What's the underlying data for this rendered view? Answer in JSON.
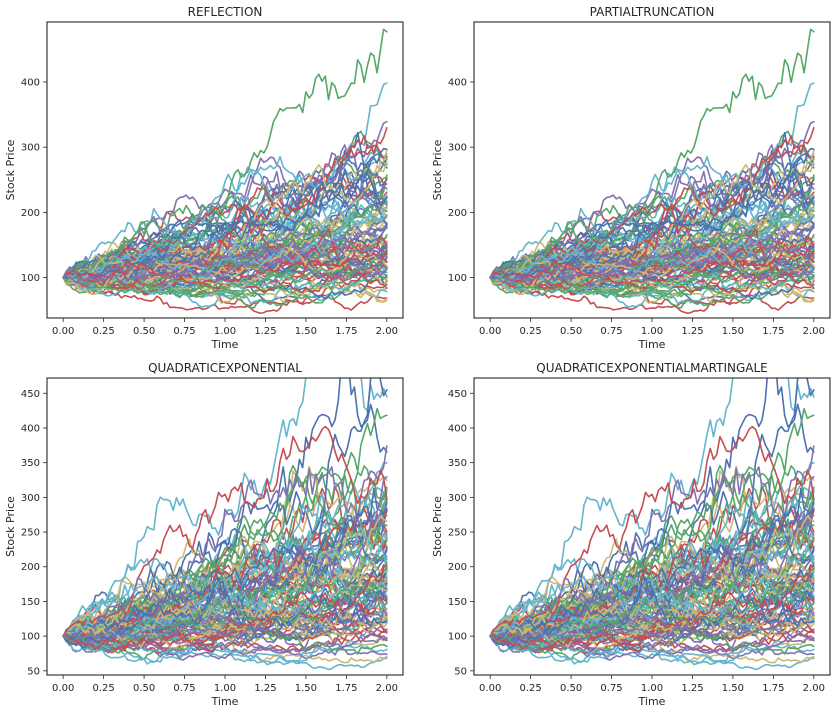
{
  "chart_data": [
    {
      "type": "line",
      "title": "REFLECTION",
      "xlabel": "Time",
      "ylabel": "Stock Price",
      "xlim": [
        -0.1,
        2.1
      ],
      "ylim": [
        38,
        492
      ],
      "xticks": [
        "0.00",
        "0.25",
        "0.50",
        "0.75",
        "1.00",
        "1.25",
        "1.50",
        "1.75",
        "2.00"
      ],
      "yticks": [
        "100",
        "200",
        "300",
        "400"
      ],
      "x_range": [
        0,
        2
      ],
      "start_value": 100,
      "num_paths": 100,
      "final_max": 477,
      "final_min": 65,
      "grid": false
    },
    {
      "type": "line",
      "title": "PARTIALTRUNCATION",
      "xlabel": "Time",
      "ylabel": "Stock Price",
      "xlim": [
        -0.1,
        2.1
      ],
      "ylim": [
        38,
        492
      ],
      "xticks": [
        "0.00",
        "0.25",
        "0.50",
        "0.75",
        "1.00",
        "1.25",
        "1.50",
        "1.75",
        "2.00"
      ],
      "yticks": [
        "100",
        "200",
        "300",
        "400"
      ],
      "x_range": [
        0,
        2
      ],
      "start_value": 100,
      "num_paths": 100,
      "final_max": 477,
      "final_min": 65,
      "grid": false
    },
    {
      "type": "line",
      "title": "QUADRATICEXPONENTIAL",
      "xlabel": "Time",
      "ylabel": "Stock Price",
      "xlim": [
        -0.1,
        2.1
      ],
      "ylim": [
        44,
        472
      ],
      "xticks": [
        "0.00",
        "0.25",
        "0.50",
        "0.75",
        "1.00",
        "1.25",
        "1.50",
        "1.75",
        "2.00"
      ],
      "yticks": [
        "50",
        "100",
        "150",
        "200",
        "250",
        "300",
        "350",
        "400",
        "450"
      ],
      "x_range": [
        0,
        2
      ],
      "start_value": 100,
      "num_paths": 100,
      "final_max": 455,
      "final_min": 68,
      "grid": false
    },
    {
      "type": "line",
      "title": "QUADRATICEXPONENTIALMARTINGALE",
      "xlabel": "Time",
      "ylabel": "Stock Price",
      "xlim": [
        -0.1,
        2.1
      ],
      "ylim": [
        44,
        472
      ],
      "xticks": [
        "0.00",
        "0.25",
        "0.50",
        "0.75",
        "1.00",
        "1.25",
        "1.50",
        "1.75",
        "2.00"
      ],
      "yticks": [
        "50",
        "100",
        "150",
        "200",
        "250",
        "300",
        "350",
        "400",
        "450"
      ],
      "x_range": [
        0,
        2
      ],
      "start_value": 100,
      "num_paths": 100,
      "final_max": 455,
      "final_min": 68,
      "grid": false
    }
  ],
  "palette": [
    "#4c72b0",
    "#55a868",
    "#c44e52",
    "#8172b2",
    "#ccb974",
    "#64b5cd"
  ]
}
